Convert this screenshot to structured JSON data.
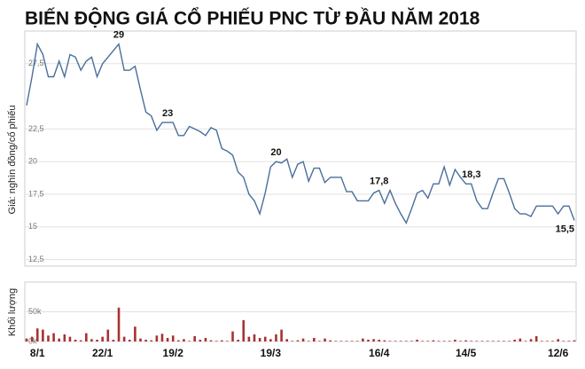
{
  "chart_data": [
    {
      "type": "line",
      "title": "BIẾN ĐỘNG GIÁ CỔ PHIẾU PNC TỪ ĐẦU NĂM 2018",
      "y_label": "Giá: nghìn đồng/cổ phiếu",
      "color": "#4a6f9c",
      "grid": true,
      "categories": [
        null,
        null,
        "8/1",
        null,
        null,
        null,
        null,
        null,
        null,
        null,
        null,
        null,
        null,
        null,
        "22/1",
        null,
        null,
        null,
        null,
        null,
        null,
        null,
        null,
        null,
        null,
        null,
        null,
        "19/2",
        null,
        null,
        null,
        null,
        null,
        null,
        null,
        null,
        null,
        null,
        null,
        null,
        null,
        null,
        null,
        null,
        null,
        "19/3",
        null,
        null,
        null,
        null,
        null,
        null,
        null,
        null,
        null,
        null,
        null,
        null,
        null,
        null,
        null,
        null,
        null,
        null,
        null,
        "16/4",
        null,
        null,
        null,
        null,
        null,
        null,
        null,
        null,
        null,
        null,
        null,
        null,
        null,
        null,
        null,
        "14/5",
        null,
        null,
        null,
        null,
        null,
        null,
        null,
        null,
        null,
        null,
        null,
        null,
        null,
        null,
        null,
        null,
        "12/6",
        null,
        null,
        null
      ],
      "values": [
        24.3,
        26.5,
        29,
        28.2,
        26.5,
        26.5,
        27.7,
        26.5,
        28.2,
        28,
        27,
        27.7,
        28,
        26.5,
        27.5,
        28,
        28.5,
        29,
        27,
        27,
        27.3,
        25.5,
        23.8,
        23.5,
        22.4,
        23,
        23,
        23,
        22,
        22,
        22.7,
        22.5,
        22.3,
        22,
        22.6,
        22.4,
        21,
        20.8,
        20.5,
        19.2,
        18.8,
        17.5,
        17,
        16,
        17.6,
        19.6,
        20,
        19.9,
        20.2,
        18.8,
        19.8,
        20,
        18.5,
        19.5,
        19.5,
        18.4,
        18.8,
        18.8,
        18.8,
        17.7,
        17.7,
        17,
        17,
        17,
        17.6,
        17.8,
        16.8,
        17.8,
        16.8,
        16,
        15.3,
        16.4,
        17.6,
        17.8,
        17.2,
        18.3,
        18.3,
        19.6,
        18.2,
        19.4,
        18.8,
        18.3,
        18.3,
        17,
        16.4,
        16.4,
        17.6,
        18.7,
        18.7,
        17.6,
        16.4,
        16,
        16,
        15.8,
        16.6,
        16.6,
        16.6,
        16.6,
        16,
        16.6,
        16.6,
        15.5
      ],
      "value_labels": [
        null,
        null,
        null,
        null,
        null,
        null,
        null,
        null,
        null,
        null,
        null,
        null,
        null,
        null,
        null,
        null,
        null,
        "29",
        null,
        null,
        null,
        null,
        null,
        null,
        null,
        null,
        "23",
        null,
        null,
        null,
        null,
        null,
        null,
        null,
        null,
        null,
        null,
        null,
        null,
        null,
        null,
        null,
        null,
        null,
        null,
        null,
        "20",
        null,
        null,
        null,
        null,
        null,
        null,
        null,
        null,
        null,
        null,
        null,
        null,
        null,
        null,
        null,
        null,
        null,
        null,
        "17,8",
        null,
        null,
        null,
        null,
        null,
        null,
        null,
        null,
        null,
        null,
        null,
        null,
        null,
        null,
        null,
        null,
        "18,3",
        null,
        null,
        null,
        null,
        null,
        null,
        null,
        null,
        null,
        null,
        null,
        null,
        null,
        null,
        null,
        null,
        null,
        null,
        "15,5"
      ],
      "ylim": [
        12,
        30
      ],
      "yticks": [
        {
          "value": 12.5,
          "label": "12,5"
        },
        15,
        {
          "value": 17.5,
          "label": "17,5"
        },
        20,
        {
          "value": 22.5,
          "label": "22,5"
        },
        {
          "value": 27.5,
          "label": "27,5"
        }
      ]
    },
    {
      "type": "bar",
      "y_label": "Khối lượng",
      "color": "#a83232",
      "values": [
        5000,
        8000,
        22000,
        20000,
        10000,
        14000,
        5000,
        12000,
        8000,
        3000,
        2000,
        14000,
        4000,
        3000,
        8000,
        20000,
        3000,
        57000,
        8000,
        3000,
        25000,
        5000,
        3000,
        2000,
        10000,
        13000,
        6000,
        10000,
        2000,
        4000,
        1000,
        9000,
        3000,
        6000,
        2000,
        1000,
        2000,
        1000,
        17000,
        3000,
        36000,
        8000,
        12000,
        6000,
        8000,
        4000,
        12000,
        20000,
        4000,
        1000,
        2000,
        5000,
        1000,
        6000,
        1000,
        5000,
        2000,
        1000,
        1000,
        1000,
        1000,
        1000,
        5000,
        3000,
        4000,
        3000,
        2000,
        1000,
        1000,
        1000,
        1000,
        1000,
        3000,
        1000,
        1000,
        2000,
        1000,
        1000,
        1000,
        3000,
        1000,
        2000,
        1000,
        1000,
        1000,
        1000,
        1000,
        1000,
        1000,
        1000,
        3000,
        5000,
        1000,
        4000,
        9000,
        1000,
        1000,
        1000,
        4000,
        1000,
        1000,
        2000
      ],
      "ylim": [
        0,
        100000
      ],
      "yticks": [
        {
          "value": 0,
          "label": "0k"
        },
        {
          "value": 50000,
          "label": "50k"
        }
      ]
    }
  ]
}
